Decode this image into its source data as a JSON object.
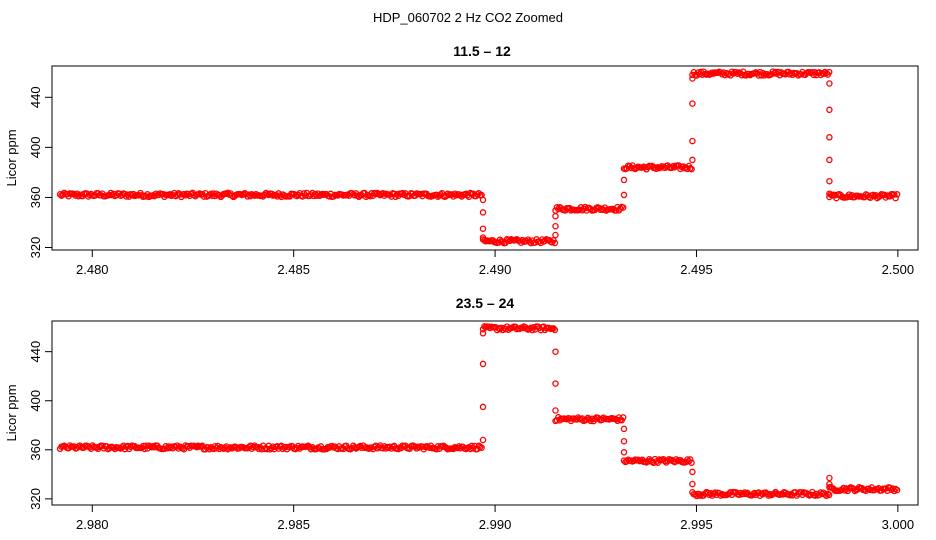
{
  "figure_title": "HDP_060702  2 Hz CO2 Zoomed",
  "series_color": "#ff0000",
  "marker": "open-circle",
  "chart_data": [
    {
      "type": "scatter",
      "title": "11.5 – 12",
      "ylabel": "Licor ppm",
      "xlabel": "",
      "xlim": [
        2.479,
        2.5005
      ],
      "ylim": [
        318,
        465
      ],
      "xticks": [
        2.48,
        2.485,
        2.49,
        2.495,
        2.5
      ],
      "xtick_labels": [
        "2.480",
        "2.485",
        "2.490",
        "2.495",
        "2.500"
      ],
      "yticks": [
        320,
        360,
        400,
        440
      ],
      "ytick_labels": [
        "320",
        "360",
        "400",
        "440"
      ],
      "grid": false,
      "plateaus": [
        {
          "x_start": 2.4792,
          "x_end": 2.4897,
          "y": 362
        },
        {
          "x_start": 2.4897,
          "x_end": 2.4915,
          "y": 325
        },
        {
          "x_start": 2.4915,
          "x_end": 2.4932,
          "y": 351
        },
        {
          "x_start": 2.4932,
          "x_end": 2.4949,
          "y": 384
        },
        {
          "x_start": 2.4949,
          "x_end": 2.4983,
          "y": 459
        },
        {
          "x_start": 2.4983,
          "x_end": 2.5,
          "y": 361
        }
      ],
      "transitions": [
        {
          "x": 2.4897,
          "points": [
            358,
            348,
            335,
            328
          ]
        },
        {
          "x": 2.4915,
          "points": [
            330,
            337,
            345
          ]
        },
        {
          "x": 2.4932,
          "points": [
            362,
            374
          ]
        },
        {
          "x": 2.4949,
          "points": [
            390,
            405,
            435,
            455
          ]
        },
        {
          "x": 2.4983,
          "points": [
            451,
            430,
            408,
            390,
            373,
            363
          ]
        }
      ]
    },
    {
      "type": "scatter",
      "title": "23.5 – 24",
      "ylabel": "Licor ppm",
      "xlabel": "",
      "xlim": [
        2.979,
        3.0005
      ],
      "ylim": [
        315,
        465
      ],
      "xticks": [
        2.98,
        2.985,
        2.99,
        2.995,
        3.0
      ],
      "xtick_labels": [
        "2.980",
        "2.985",
        "2.990",
        "2.995",
        "3.000"
      ],
      "yticks": [
        320,
        360,
        400,
        440
      ],
      "ytick_labels": [
        "320",
        "360",
        "400",
        "440"
      ],
      "grid": false,
      "plateaus": [
        {
          "x_start": 2.9792,
          "x_end": 2.9897,
          "y": 362
        },
        {
          "x_start": 2.9897,
          "x_end": 2.9915,
          "y": 459
        },
        {
          "x_start": 2.9915,
          "x_end": 2.9932,
          "y": 385
        },
        {
          "x_start": 2.9932,
          "x_end": 2.9949,
          "y": 351
        },
        {
          "x_start": 2.9949,
          "x_end": 2.9983,
          "y": 324
        },
        {
          "x_start": 2.9983,
          "x_end": 3.0,
          "y": 328
        }
      ],
      "transitions": [
        {
          "x": 2.9897,
          "points": [
            368,
            395,
            430,
            455
          ]
        },
        {
          "x": 2.9915,
          "points": [
            440,
            414,
            392
          ]
        },
        {
          "x": 2.9932,
          "points": [
            377,
            367,
            358
          ]
        },
        {
          "x": 2.9949,
          "points": [
            342,
            332
          ]
        },
        {
          "x": 2.9983,
          "points": [
            332,
            337
          ]
        }
      ]
    }
  ]
}
